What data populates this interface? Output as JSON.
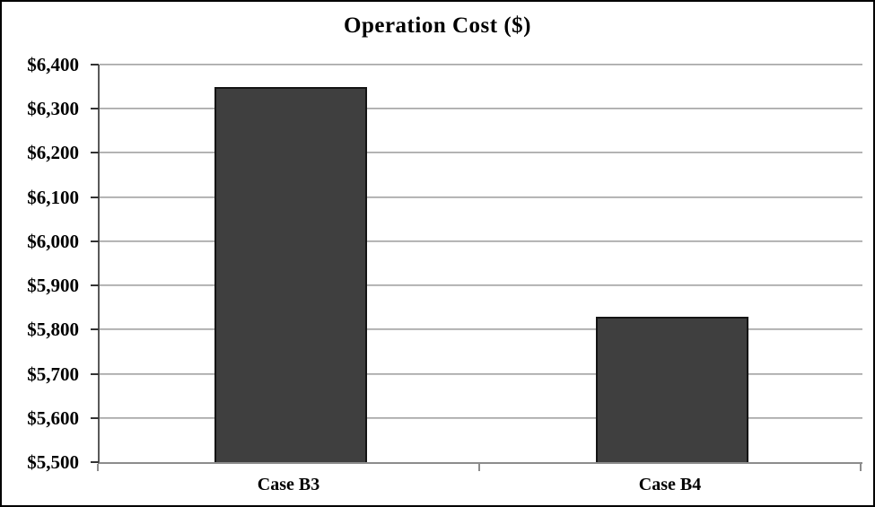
{
  "chart_data": {
    "type": "bar",
    "title": "Operation Cost ($)",
    "categories": [
      "Case B3",
      "Case B4"
    ],
    "values": [
      6350,
      5830
    ],
    "ylim": [
      5500,
      6400
    ],
    "ytick_step": 100,
    "ytick_labels": [
      "$5,500",
      "$5,600",
      "$5,700",
      "$5,800",
      "$5,900",
      "$6,000",
      "$6,100",
      "$6,200",
      "$6,300",
      "$6,400"
    ],
    "xlabel": "",
    "ylabel": "",
    "grid": true,
    "legend": false,
    "colors": {
      "bar_fill": "#3f3f3f",
      "bar_border": "#141414",
      "gridline": "#b3b3b3",
      "y_axis": "#595959",
      "x_axis": "#8c8c8c",
      "text": "#000000",
      "background": "#ffffff",
      "frame_border": "#000000"
    }
  }
}
